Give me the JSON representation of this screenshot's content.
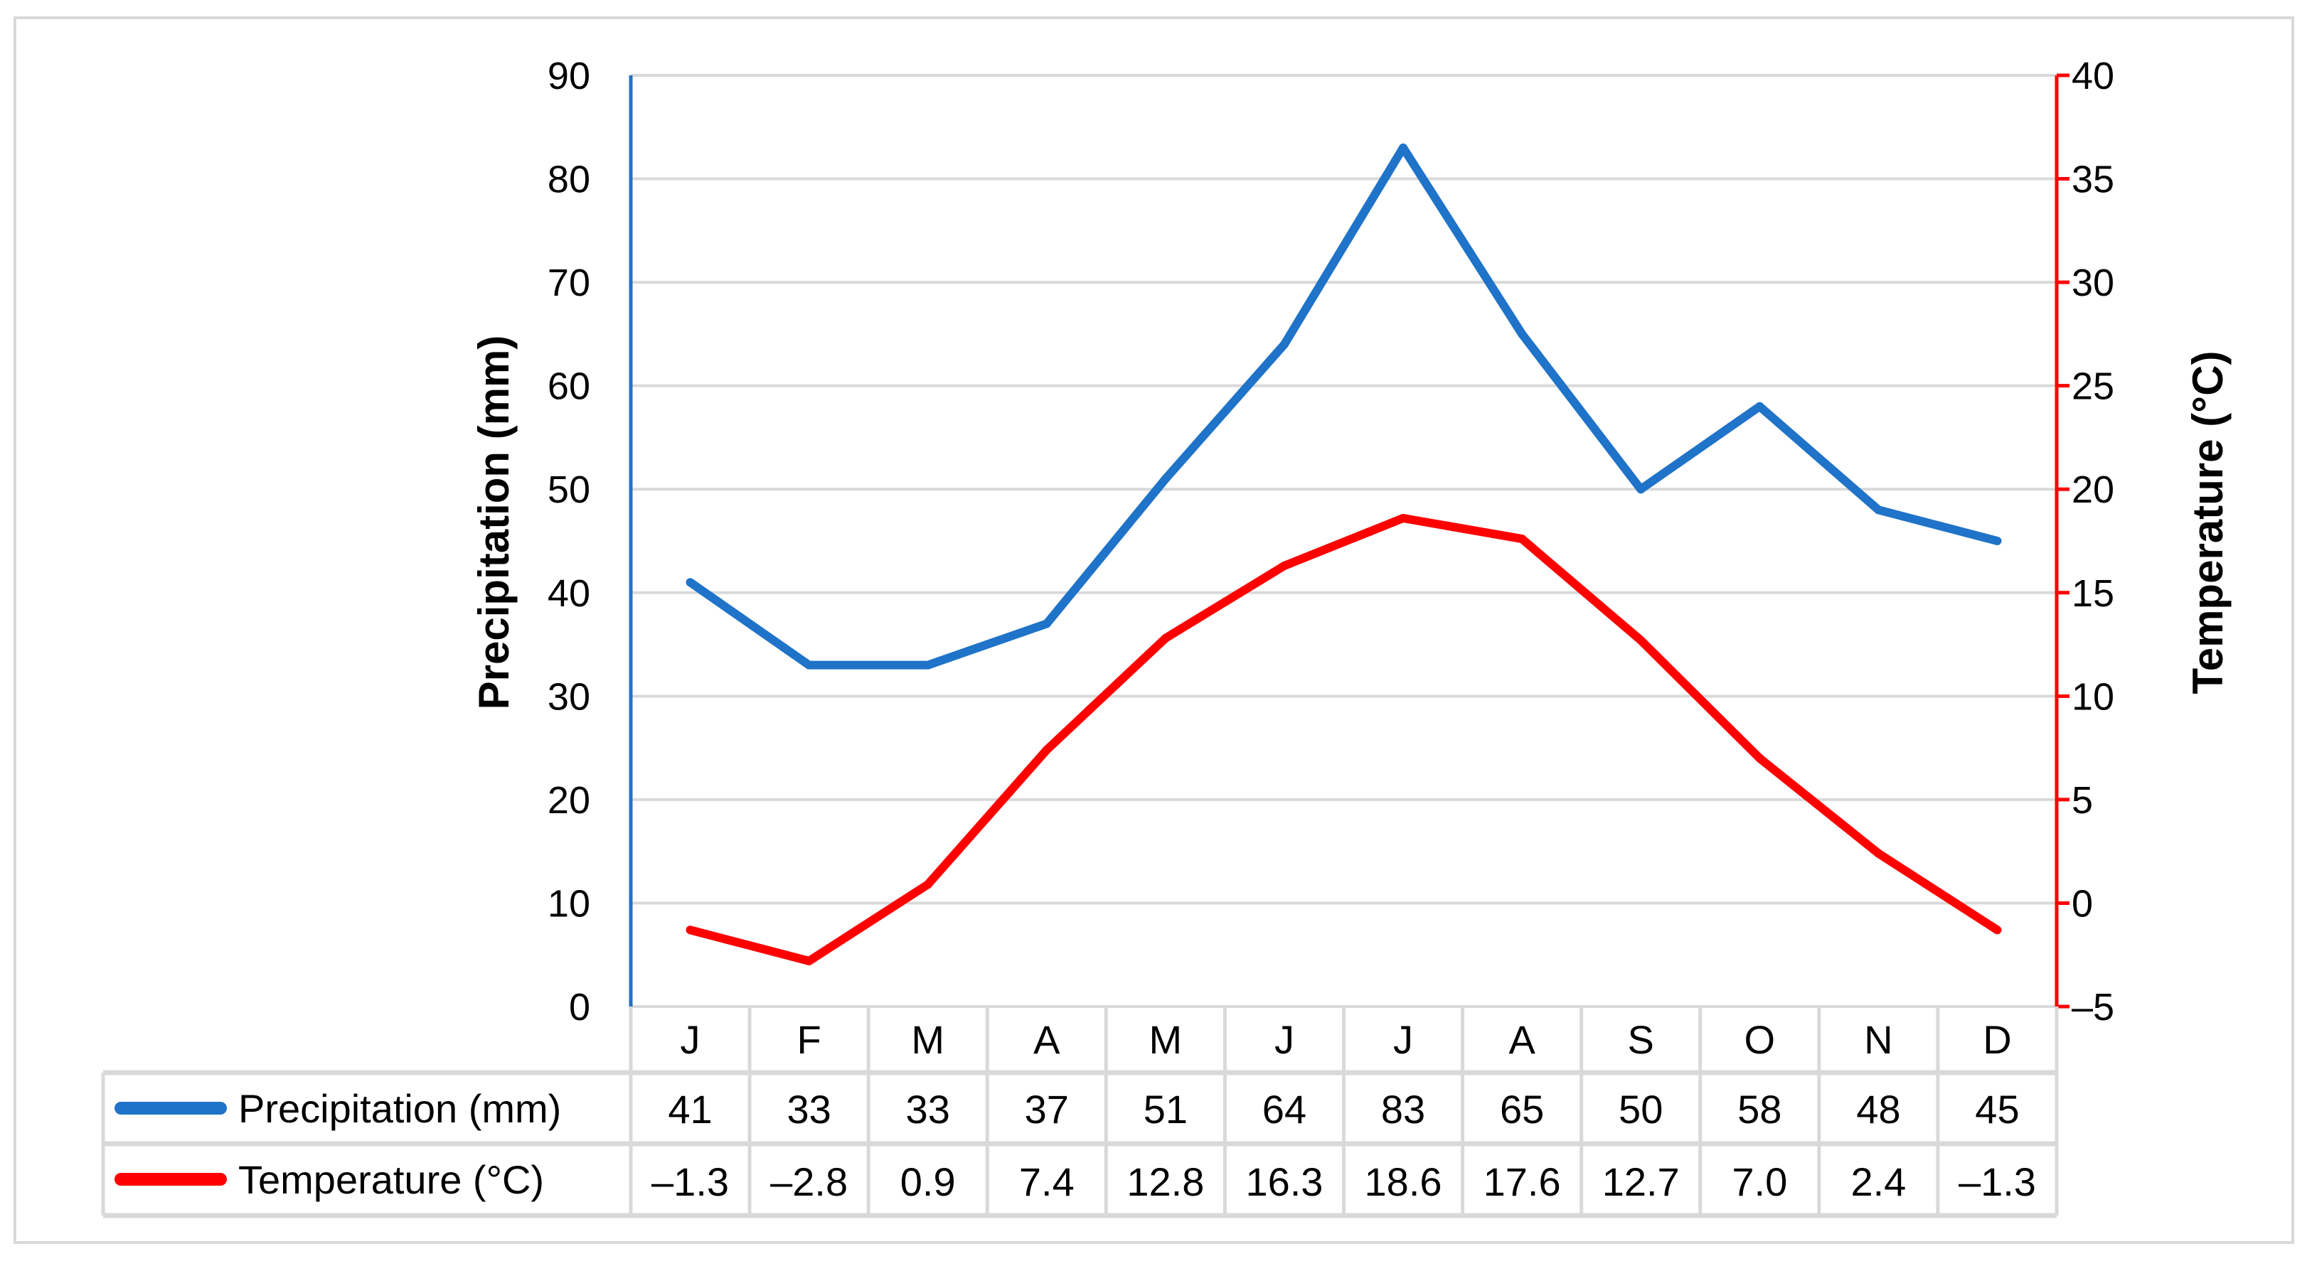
{
  "chart_data": {
    "type": "line",
    "categories": [
      "J",
      "F",
      "M",
      "A",
      "M",
      "J",
      "J",
      "A",
      "S",
      "O",
      "N",
      "D"
    ],
    "series": [
      {
        "name": "Precipitation (mm)",
        "axis": "left",
        "color": "#1f73c8",
        "values": [
          41,
          33,
          33,
          37,
          51,
          64,
          83,
          65,
          50,
          58,
          48,
          45
        ],
        "labels": [
          "41",
          "33",
          "33",
          "37",
          "51",
          "64",
          "83",
          "65",
          "50",
          "58",
          "48",
          "45"
        ]
      },
      {
        "name": "Temperature (°C)",
        "axis": "right",
        "color": "#ff0000",
        "values": [
          -1.3,
          -2.8,
          0.9,
          7.4,
          12.8,
          16.3,
          18.6,
          17.6,
          12.7,
          7.0,
          2.4,
          -1.3
        ],
        "labels": [
          "–1.3",
          "–2.8",
          "0.9",
          "7.4",
          "12.8",
          "16.3",
          "18.6",
          "17.6",
          "12.7",
          "7.0",
          "2.4",
          "–1.3"
        ]
      }
    ],
    "ylabel": "Precipitation (mm)",
    "y2label": "Temperature (°C)",
    "ylim": [
      0,
      90
    ],
    "y2lim": [
      -5,
      40
    ],
    "yticks": [
      "0",
      "10",
      "20",
      "30",
      "40",
      "50",
      "60",
      "70",
      "80",
      "90"
    ],
    "y2ticks": [
      "–5",
      "0",
      "5",
      "10",
      "15",
      "20",
      "25",
      "30",
      "35",
      "40"
    ],
    "grid": true,
    "legend": "data-table",
    "gridColor": "#d9d9d9"
  }
}
